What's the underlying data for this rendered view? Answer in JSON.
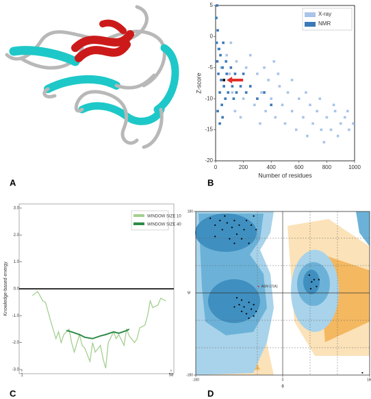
{
  "panel_labels": [
    "A",
    "B",
    "C",
    "D"
  ],
  "chart_data": [
    {
      "type": "scatter",
      "xlabel": "Number of residues",
      "ylabel": "Z-score",
      "xlim": [
        0,
        1000
      ],
      "ylim": [
        -20,
        5
      ],
      "xticks": [
        0,
        200,
        400,
        600,
        800,
        1000
      ],
      "yticks": [
        5,
        0,
        -5,
        -10,
        -15,
        -20
      ],
      "legend": "upper right",
      "marker": "square",
      "series": [
        {
          "name": "X-ray",
          "color": "#a9c4e8",
          "x": [
            20,
            40,
            60,
            80,
            100,
            120,
            150,
            170,
            200,
            220,
            250,
            280,
            300,
            330,
            360,
            380,
            400,
            430,
            460,
            480,
            500,
            520,
            550,
            580,
            600,
            630,
            660,
            680,
            700,
            730,
            760,
            780,
            800,
            830,
            860,
            880,
            900,
            930,
            960,
            990,
            140,
            250,
            350,
            450,
            550,
            650,
            750,
            850,
            950,
            110,
            180,
            320,
            420
          ],
          "values": [
            -2,
            -5,
            -8,
            -3,
            -6,
            -9,
            -4,
            -7,
            -10,
            -5,
            -8,
            -11,
            -6,
            -9,
            -12,
            -7,
            -10,
            -13,
            -8,
            -11,
            -14,
            -9,
            -12,
            -15,
            -10,
            -13,
            -16,
            -11,
            -14,
            -12,
            -15,
            -17,
            -13,
            -15,
            -12,
            -16,
            -14,
            -13,
            -15,
            -14,
            -12,
            -3,
            -5,
            -6,
            -7,
            -9,
            -10,
            -11,
            -12,
            -1,
            -13,
            -14,
            -4
          ]
        },
        {
          "name": "NMR",
          "color": "#3b78b8",
          "x": [
            5,
            8,
            10,
            12,
            15,
            20,
            25,
            30,
            35,
            40,
            45,
            50,
            55,
            60,
            70,
            75,
            80,
            90,
            100,
            110,
            120,
            130,
            140,
            150,
            160,
            180,
            200,
            220,
            250,
            300,
            350,
            400,
            15,
            30,
            50
          ],
          "values": [
            3,
            -1,
            5,
            -4,
            1,
            -6,
            -2,
            -9,
            -3,
            -7,
            -11,
            -5,
            -1,
            -8,
            -10,
            -4,
            -6,
            -9,
            -7,
            -5,
            -8,
            -10,
            -6,
            -9,
            -7,
            -8,
            -6,
            -9,
            -8,
            -10,
            -9,
            -11,
            -12,
            -14,
            -13
          ]
        },
        {
          "color": "#000000",
          "x": [
            60
          ],
          "values": [
            -7
          ]
        }
      ]
    },
    {
      "type": "line",
      "ylabel": "Knowledge-based energy",
      "xlim": [
        1,
        58
      ],
      "ylim": [
        -3,
        3
      ],
      "xticks": [
        1,
        58
      ],
      "yticks": [
        {
          "value": 3,
          "label": "3.0"
        },
        {
          "value": 2,
          "label": "2.0"
        },
        {
          "value": 1,
          "label": "1.0"
        },
        {
          "value": 0,
          "label": "0.0"
        },
        {
          "value": -1,
          "label": "-1.0"
        },
        {
          "value": -2,
          "label": "-2.0"
        },
        {
          "value": -3,
          "label": "-3.0"
        }
      ],
      "legend": "upper right",
      "series": [
        {
          "name": "WINDOW SIZE 10",
          "color": "#a3cf8f",
          "x": [
            5,
            7,
            9,
            10,
            12,
            14,
            15,
            16,
            17,
            19,
            20,
            21,
            23,
            24,
            25,
            27,
            28,
            29,
            31,
            32,
            33,
            34,
            36,
            37,
            38,
            40,
            41,
            42,
            44,
            45,
            46,
            48,
            49,
            50,
            51,
            53,
            54,
            56
          ],
          "values": [
            -0.25,
            -0.1,
            -0.45,
            -0.5,
            -1.2,
            -1.85,
            -1.6,
            -2.0,
            -1.7,
            -1.5,
            -2.0,
            -2.35,
            -1.7,
            -2.1,
            -2.2,
            -2.7,
            -2.0,
            -2.35,
            -2.1,
            -2.6,
            -2.95,
            -2.0,
            -1.6,
            -1.85,
            -1.7,
            -2.1,
            -1.5,
            -1.75,
            -2.0,
            -1.85,
            -1.45,
            -1.35,
            -1.0,
            -0.45,
            -0.7,
            -0.6,
            -0.35,
            -0.45
          ]
        },
        {
          "name": "WINDOW SIZE 40",
          "color": "#2e8b47",
          "x": [
            18,
            20,
            23,
            25,
            28,
            31,
            33,
            36,
            38,
            41,
            42
          ],
          "values": [
            -1.55,
            -1.6,
            -1.7,
            -1.8,
            -1.85,
            -1.75,
            -1.7,
            -1.6,
            -1.65,
            -1.55,
            -1.5
          ]
        }
      ]
    },
    {
      "type": "scatter",
      "xlabel": "ϕ",
      "ylabel": "Ψ",
      "annotation": "ASN 17(A)",
      "xlim": [
        -180,
        180
      ],
      "ylim": [
        -180,
        180
      ],
      "xticks": [
        -180,
        0,
        180
      ],
      "yticks": [
        180,
        -180
      ],
      "marker": "circle",
      "series": [
        {
          "color": "#000000",
          "x": [
            -150,
            -140,
            -130,
            -125,
            -120,
            -115,
            -105,
            -100,
            -95,
            -90,
            -85,
            -80,
            -75,
            -70,
            -65,
            -140,
            -110,
            -60,
            -55,
            -100,
            -95,
            -90,
            -85,
            -80,
            -75,
            -70,
            -65,
            -60,
            -70,
            -85,
            -60,
            -100,
            -55,
            55,
            60,
            65,
            70,
            58,
            75,
            165
          ],
          "values": [
            165,
            150,
            160,
            140,
            170,
            155,
            145,
            160,
            130,
            150,
            120,
            140,
            160,
            110,
            150,
            125,
            120,
            170,
            140,
            110,
            -10,
            -25,
            -40,
            -30,
            -45,
            -20,
            -35,
            -50,
            -55,
            -15,
            -25,
            -30,
            -40,
            40,
            25,
            30,
            15,
            10,
            30,
            -175
          ]
        },
        {
          "color": "#e0302a",
          "x": [
            -50
          ],
          "values": [
            15
          ]
        }
      ]
    }
  ]
}
